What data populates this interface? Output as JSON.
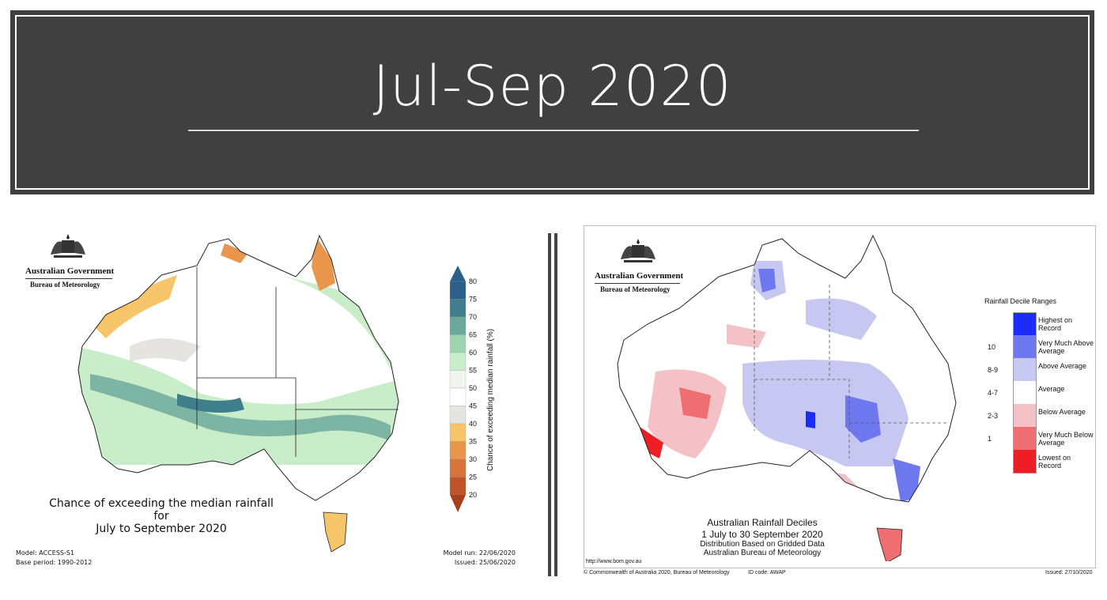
{
  "title": "Jul-Sep 2020",
  "left_panel": {
    "gov_name": "Australian Government",
    "gov_sub": "Bureau of Meteorology",
    "caption_line1": "Chance of exceeding the median rainfall for",
    "caption_line2": "July to September 2020",
    "model": "Model: ACCESS-S1",
    "base_period": "Base period: 1990-2012",
    "model_run": "Model run: 22/06/2020",
    "issued": "Issued: 25/06/2020",
    "colorbar_label": "Chance of exceeding median rainfall (%)",
    "colorbar_ticks": [
      "80",
      "75",
      "70",
      "65",
      "60",
      "55",
      "50",
      "45",
      "40",
      "35",
      "30",
      "25",
      "20"
    ],
    "colorbar_colors": [
      "#2c5e8c",
      "#3f7f8c",
      "#6aa89c",
      "#9fd4b1",
      "#c9ecc9",
      "#eef6ee",
      "#ffffff",
      "#e6e4e0",
      "#f6c56a",
      "#e9954c",
      "#d6743a",
      "#c0532c"
    ]
  },
  "right_panel": {
    "gov_name": "Australian Government",
    "gov_sub": "Bureau of Meteorology",
    "legend_title": "Rainfall Decile Ranges",
    "legend": [
      {
        "decile": "",
        "label": "Highest on Record",
        "color": "#1a2cf5"
      },
      {
        "decile": "10",
        "label": "Very Much Above Average",
        "color": "#6e78ee"
      },
      {
        "decile": "8-9",
        "label": "Above Average",
        "color": "#c7c8f2"
      },
      {
        "decile": "4-7",
        "label": "Average",
        "color": "#ffffff"
      },
      {
        "decile": "2-3",
        "label": "Below Average",
        "color": "#f4c2c6"
      },
      {
        "decile": "1",
        "label": "Very Much Below Average",
        "color": "#ee6e72"
      },
      {
        "decile": "",
        "label": "Lowest on Record",
        "color": "#ee1f24"
      }
    ],
    "caption_title": "Australian Rainfall Deciles",
    "caption_dates": "1 July to 30 September 2020",
    "caption_dist": "Distribution Based on Gridded Data",
    "caption_org": "Australian Bureau of Meteorology",
    "url": "http://www.bom.gov.au",
    "copyright": "© Commonwealth of Australia 2020, Bureau of Meteorology",
    "id_code": "ID code: AWAP",
    "issued": "Issued: 27/10/2020"
  }
}
